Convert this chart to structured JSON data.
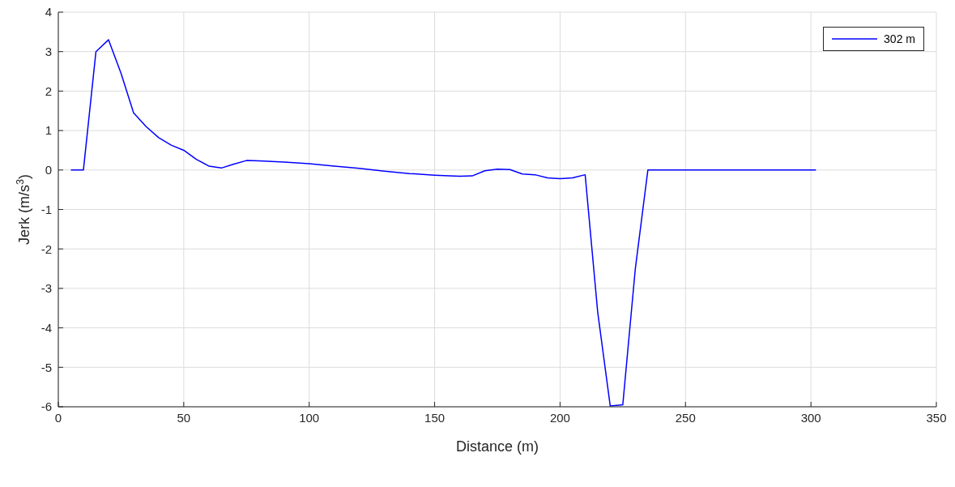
{
  "chart_data": {
    "type": "line",
    "xlabel": "Distance (m)",
    "ylabel": "Jerk (m/s$^{3}$)",
    "xlim": [
      0,
      350
    ],
    "xticks": [
      0,
      50,
      100,
      150,
      200,
      250,
      300,
      350
    ],
    "ylim": [
      -6,
      4
    ],
    "yticks": [
      -6,
      -5,
      -4,
      -3,
      -2,
      -1,
      0,
      1,
      2,
      3,
      4
    ],
    "grid": true,
    "legend": "top right",
    "marker": "none",
    "line_style": "solid",
    "series": [
      {
        "name": "302 m",
        "color": "#0000ff",
        "x": [
          5,
          10,
          15,
          20,
          25,
          30,
          35,
          40,
          45,
          50,
          55,
          60,
          65,
          70,
          75,
          80,
          90,
          100,
          110,
          120,
          130,
          140,
          150,
          160,
          165,
          170,
          175,
          180,
          185,
          190,
          195,
          200,
          205,
          210,
          215,
          220,
          225,
          230,
          235,
          302
        ],
        "values": [
          0,
          0,
          3.0,
          3.3,
          2.45,
          1.45,
          1.1,
          0.82,
          0.63,
          0.5,
          0.27,
          0.1,
          0.05,
          0.15,
          0.24,
          0.23,
          0.2,
          0.16,
          0.1,
          0.04,
          -0.03,
          -0.09,
          -0.13,
          -0.16,
          -0.15,
          -0.02,
          0.02,
          0.01,
          -0.1,
          -0.12,
          -0.2,
          -0.22,
          -0.2,
          -0.12,
          -3.6,
          -5.98,
          -5.95,
          -2.5,
          0,
          0
        ]
      }
    ]
  }
}
